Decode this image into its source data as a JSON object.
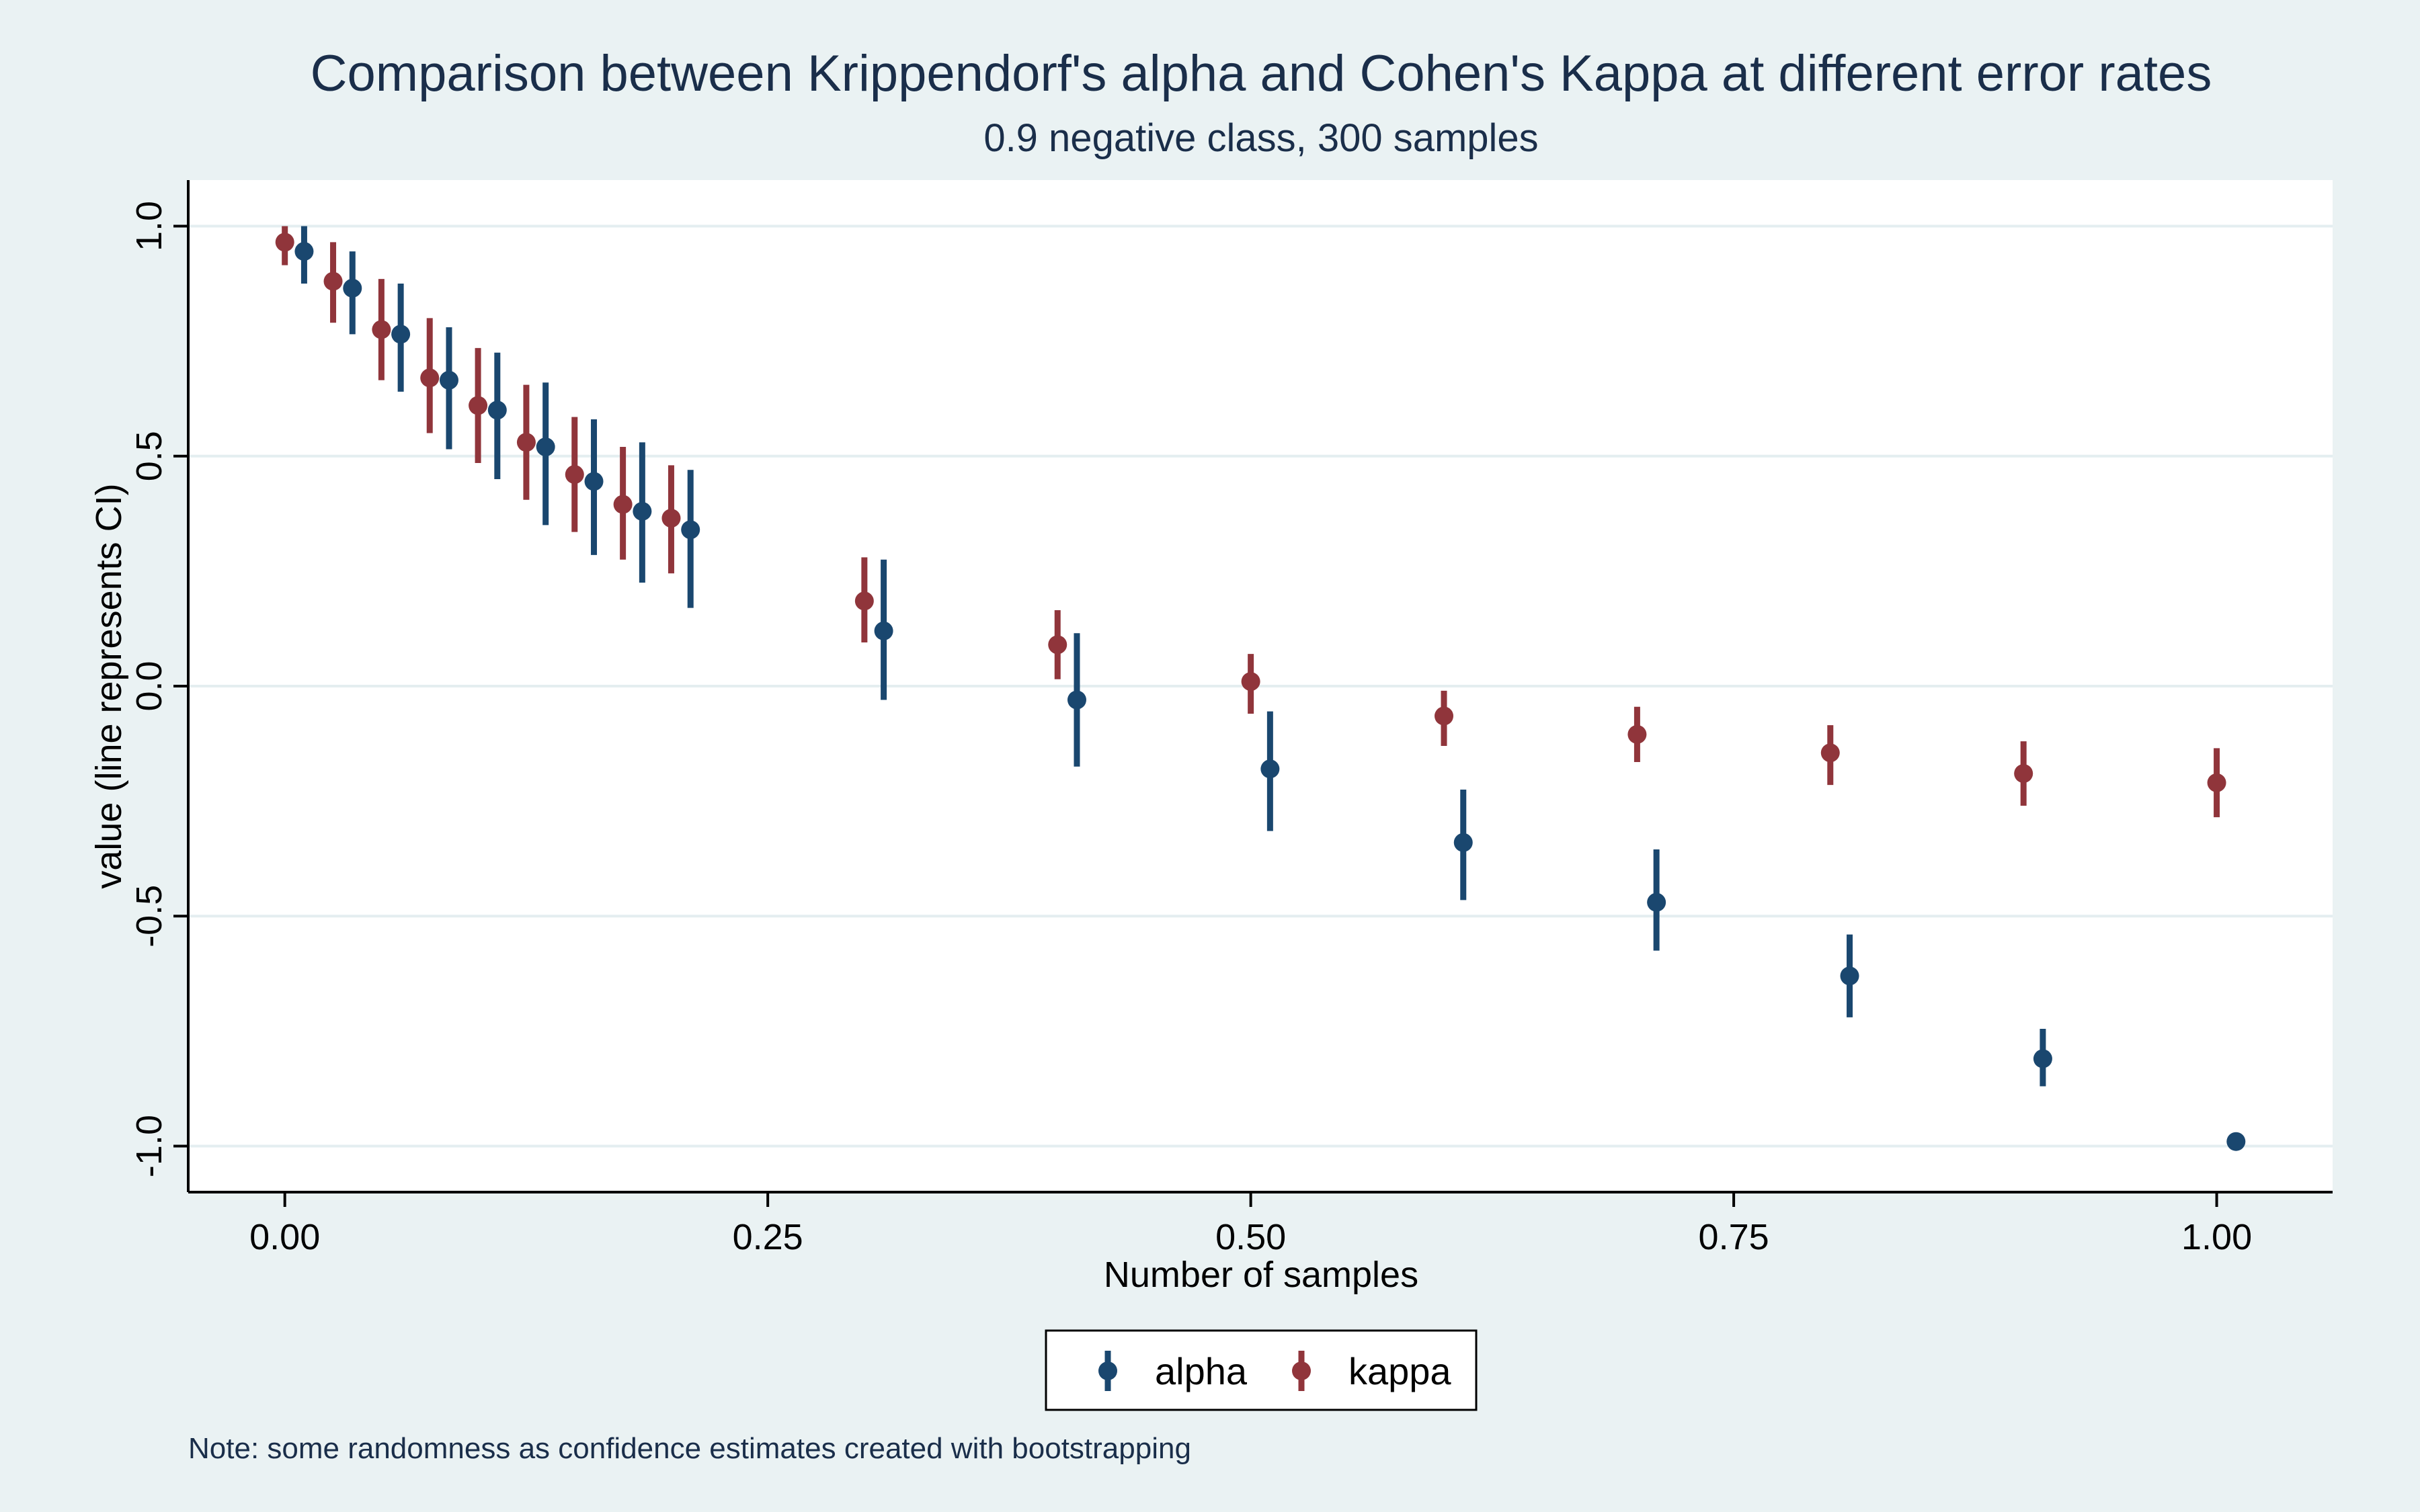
{
  "chart_data": {
    "type": "scatter",
    "title": "Comparison between Krippendorf's alpha and Cohen's Kappa at different error rates",
    "subtitle": "0.9 negative class, 300 samples",
    "xlabel": "Number of samples",
    "ylabel": "value (line represents CI)",
    "xlim": [
      -0.05,
      1.06
    ],
    "ylim": [
      -1.1,
      1.1
    ],
    "xticks": [
      0,
      0.25,
      0.5,
      0.75,
      1
    ],
    "xtick_labels": [
      "0.00",
      "0.25",
      "0.50",
      "0.75",
      "1.00"
    ],
    "yticks": [
      1,
      0.5,
      0,
      -0.5,
      -1
    ],
    "ytick_labels": [
      "1.0",
      "0.5",
      "0.0",
      "-0.5",
      "-1.0"
    ],
    "grid": "horizontal",
    "legend_position": "bottom-center",
    "note": "Note: some randomness as confidence estimates created with bootstrapping",
    "series": [
      {
        "name": "alpha",
        "color": "#1a476f",
        "points": [
          {
            "x": 0.01,
            "y": 0.945,
            "lo": 0.875,
            "hi": 1.0
          },
          {
            "x": 0.035,
            "y": 0.865,
            "lo": 0.765,
            "hi": 0.945
          },
          {
            "x": 0.06,
            "y": 0.765,
            "lo": 0.64,
            "hi": 0.875
          },
          {
            "x": 0.085,
            "y": 0.665,
            "lo": 0.515,
            "hi": 0.78
          },
          {
            "x": 0.11,
            "y": 0.6,
            "lo": 0.45,
            "hi": 0.725
          },
          {
            "x": 0.135,
            "y": 0.52,
            "lo": 0.35,
            "hi": 0.66
          },
          {
            "x": 0.16,
            "y": 0.445,
            "lo": 0.285,
            "hi": 0.58
          },
          {
            "x": 0.185,
            "y": 0.38,
            "lo": 0.225,
            "hi": 0.53
          },
          {
            "x": 0.21,
            "y": 0.34,
            "lo": 0.17,
            "hi": 0.47
          },
          {
            "x": 0.31,
            "y": 0.12,
            "lo": -0.03,
            "hi": 0.275
          },
          {
            "x": 0.41,
            "y": -0.03,
            "lo": -0.175,
            "hi": 0.115
          },
          {
            "x": 0.51,
            "y": -0.18,
            "lo": -0.315,
            "hi": -0.055
          },
          {
            "x": 0.61,
            "y": -0.34,
            "lo": -0.465,
            "hi": -0.225
          },
          {
            "x": 0.71,
            "y": -0.47,
            "lo": -0.575,
            "hi": -0.355
          },
          {
            "x": 0.81,
            "y": -0.63,
            "lo": -0.72,
            "hi": -0.54
          },
          {
            "x": 0.91,
            "y": -0.81,
            "lo": -0.87,
            "hi": -0.745
          },
          {
            "x": 1.01,
            "y": -0.99,
            "lo": -0.99,
            "hi": -0.99
          }
        ]
      },
      {
        "name": "kappa",
        "color": "#90353b",
        "points": [
          {
            "x": 0.0,
            "y": 0.965,
            "lo": 0.915,
            "hi": 1.0
          },
          {
            "x": 0.025,
            "y": 0.88,
            "lo": 0.79,
            "hi": 0.965
          },
          {
            "x": 0.05,
            "y": 0.775,
            "lo": 0.665,
            "hi": 0.885
          },
          {
            "x": 0.075,
            "y": 0.67,
            "lo": 0.55,
            "hi": 0.8
          },
          {
            "x": 0.1,
            "y": 0.61,
            "lo": 0.485,
            "hi": 0.735
          },
          {
            "x": 0.125,
            "y": 0.53,
            "lo": 0.405,
            "hi": 0.655
          },
          {
            "x": 0.15,
            "y": 0.46,
            "lo": 0.335,
            "hi": 0.585
          },
          {
            "x": 0.175,
            "y": 0.395,
            "lo": 0.275,
            "hi": 0.52
          },
          {
            "x": 0.2,
            "y": 0.365,
            "lo": 0.245,
            "hi": 0.48
          },
          {
            "x": 0.3,
            "y": 0.185,
            "lo": 0.095,
            "hi": 0.28
          },
          {
            "x": 0.4,
            "y": 0.09,
            "lo": 0.015,
            "hi": 0.165
          },
          {
            "x": 0.5,
            "y": 0.01,
            "lo": -0.06,
            "hi": 0.07
          },
          {
            "x": 0.6,
            "y": -0.065,
            "lo": -0.13,
            "hi": -0.01
          },
          {
            "x": 0.7,
            "y": -0.105,
            "lo": -0.165,
            "hi": -0.045
          },
          {
            "x": 0.8,
            "y": -0.145,
            "lo": -0.215,
            "hi": -0.085
          },
          {
            "x": 0.9,
            "y": -0.19,
            "lo": -0.26,
            "hi": -0.12
          },
          {
            "x": 1.0,
            "y": -0.21,
            "lo": -0.285,
            "hi": -0.135
          }
        ]
      }
    ]
  }
}
